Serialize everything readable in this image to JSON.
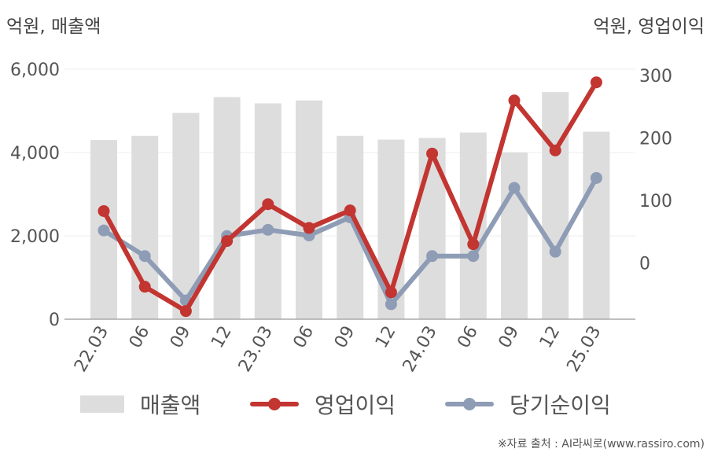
{
  "left_unit": "억원, 매출액",
  "right_unit": "억원, 영업이익",
  "source": "※자료 출처 : AI라씨로(www.rassiro.com)",
  "colors": {
    "revenue": "#dddddd",
    "operating_profit": "#c23531",
    "net_income": "#8e9cb5",
    "axis": "#aaaaaa",
    "grid": "#eeeeee"
  },
  "legend": {
    "revenue": "매출액",
    "operating_profit": "영업이익",
    "net_income": "당기순이익"
  },
  "chart_data": {
    "type": "bar",
    "categories": [
      "22.03",
      "06",
      "09",
      "12",
      "23.03",
      "06",
      "09",
      "12",
      "24.03",
      "06",
      "09",
      "12",
      "25.03"
    ],
    "left_axis": {
      "ylim": [
        0,
        6000
      ],
      "ticks": [
        "0",
        "2,000",
        "4,000",
        "6,000"
      ],
      "tick_values": [
        0,
        2000,
        4000,
        6000
      ]
    },
    "right_axis": {
      "ylim": [
        -90,
        310
      ],
      "ticks": [
        "0",
        "100",
        "200",
        "300"
      ],
      "tick_values": [
        0,
        100,
        200,
        300
      ]
    },
    "grid": true,
    "legend_position": "bottom",
    "series": [
      {
        "name": "매출액",
        "type": "bar",
        "axis": "left",
        "values": [
          4300,
          4400,
          4950,
          5330,
          5180,
          5250,
          4400,
          4310,
          4350,
          4480,
          4000,
          5450,
          4500
        ]
      },
      {
        "name": "영업이익",
        "type": "line",
        "axis": "right",
        "values": [
          83,
          -38,
          -77,
          35,
          94,
          56,
          84,
          -47,
          175,
          30,
          260,
          180,
          289
        ]
      },
      {
        "name": "당기순이익",
        "type": "line",
        "axis": "right",
        "values": [
          52,
          11,
          -60,
          43,
          53,
          44,
          73,
          -66,
          11,
          11,
          120,
          18,
          136
        ]
      }
    ]
  }
}
